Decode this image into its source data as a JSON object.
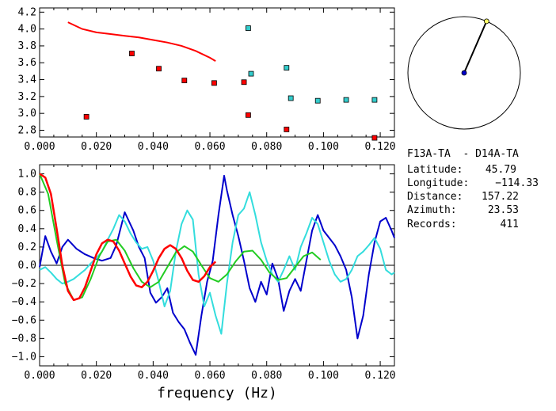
{
  "info": {
    "pair": "F13A-TA  - D14A-TA",
    "rows": [
      {
        "label": "Latitude:",
        "value": "45.79"
      },
      {
        "label": "Longitude:",
        "value": "-114.33"
      },
      {
        "label": "Distance:",
        "value": "157.22"
      },
      {
        "label": "Azimuth:",
        "value": "23.53"
      },
      {
        "label": "Records:",
        "value": "411"
      }
    ]
  },
  "compass": {
    "azimuth_deg": 23.53
  },
  "chart_data": [
    {
      "type": "scatter",
      "title": "",
      "xlabel": "",
      "ylabel": "",
      "xlim": [
        0.0,
        0.125
      ],
      "ylim": [
        2.72,
        4.25
      ],
      "xticks": [
        "0.000",
        "0.020",
        "0.040",
        "0.060",
        "0.080",
        "0.100",
        "0.120"
      ],
      "yticks": [
        "2.8",
        "3.0",
        "3.2",
        "3.4",
        "3.6",
        "3.8",
        "4.0",
        "4.2"
      ],
      "series": [
        {
          "color": "#ff0000",
          "kind": "line",
          "x": [
            0.01,
            0.015,
            0.02,
            0.025,
            0.03,
            0.035,
            0.04,
            0.045,
            0.05,
            0.055,
            0.06,
            0.062
          ],
          "y": [
            4.08,
            4.0,
            3.96,
            3.94,
            3.92,
            3.9,
            3.87,
            3.84,
            3.8,
            3.74,
            3.66,
            3.62
          ]
        },
        {
          "color": "#ff0000",
          "kind": "markers",
          "x": [
            0.0165,
            0.0325,
            0.042,
            0.051,
            0.0615,
            0.072,
            0.0735,
            0.087,
            0.118
          ],
          "y": [
            2.96,
            3.71,
            3.53,
            3.39,
            3.36,
            3.37,
            2.98,
            2.81,
            2.71
          ]
        },
        {
          "color": "#33cccc",
          "kind": "markers",
          "x": [
            0.0735,
            0.0745,
            0.087,
            0.0885,
            0.098,
            0.108,
            0.118
          ],
          "y": [
            4.01,
            3.47,
            3.54,
            3.18,
            3.15,
            3.16,
            3.16
          ]
        }
      ]
    },
    {
      "type": "line",
      "title": "",
      "xlabel": "frequency (Hz)",
      "ylabel": "",
      "xlim": [
        0.0,
        0.125
      ],
      "ylim": [
        -1.1,
        1.1
      ],
      "xticks": [
        "0.000",
        "0.020",
        "0.040",
        "0.060",
        "0.080",
        "0.100",
        "0.120"
      ],
      "yticks": [
        "1.0",
        "0.8",
        "0.6",
        "0.4",
        "0.2",
        "0.0",
        "-0.2",
        "-0.4",
        "-0.6",
        "-0.8",
        "-1.0"
      ],
      "series": [
        {
          "color": "#0000cc",
          "x": [
            0.0,
            0.002,
            0.004,
            0.006,
            0.008,
            0.01,
            0.013,
            0.016,
            0.019,
            0.022,
            0.025,
            0.027,
            0.03,
            0.033,
            0.035,
            0.037,
            0.039,
            0.041,
            0.043,
            0.045,
            0.047,
            0.049,
            0.051,
            0.053,
            0.055,
            0.057,
            0.059,
            0.061,
            0.063,
            0.065,
            0.066,
            0.068,
            0.07,
            0.072,
            0.074,
            0.076,
            0.078,
            0.08,
            0.082,
            0.084,
            0.086,
            0.088,
            0.09,
            0.092,
            0.094,
            0.096,
            0.098,
            0.1,
            0.102,
            0.104,
            0.106,
            0.108,
            0.11,
            0.112,
            0.114,
            0.116,
            0.118,
            0.12,
            0.122,
            0.124,
            0.125
          ],
          "y": [
            -0.02,
            0.32,
            0.15,
            0.02,
            0.2,
            0.28,
            0.18,
            0.12,
            0.08,
            0.05,
            0.08,
            0.22,
            0.58,
            0.38,
            0.2,
            0.08,
            -0.3,
            -0.41,
            -0.35,
            -0.25,
            -0.52,
            -0.62,
            -0.7,
            -0.85,
            -0.98,
            -0.55,
            -0.18,
            0.05,
            0.55,
            0.98,
            0.82,
            0.55,
            0.32,
            0.05,
            -0.25,
            -0.4,
            -0.18,
            -0.32,
            0.02,
            -0.15,
            -0.5,
            -0.28,
            -0.15,
            -0.28,
            0.05,
            0.38,
            0.55,
            0.38,
            0.3,
            0.22,
            0.1,
            -0.05,
            -0.35,
            -0.8,
            -0.55,
            -0.1,
            0.25,
            0.48,
            0.52,
            0.38,
            0.3
          ]
        },
        {
          "color": "#33dddd",
          "x": [
            0.0,
            0.002,
            0.004,
            0.006,
            0.008,
            0.01,
            0.012,
            0.014,
            0.016,
            0.018,
            0.02,
            0.022,
            0.024,
            0.026,
            0.028,
            0.03,
            0.032,
            0.034,
            0.036,
            0.038,
            0.04,
            0.042,
            0.044,
            0.046,
            0.048,
            0.05,
            0.052,
            0.054,
            0.056,
            0.058,
            0.06,
            0.062,
            0.064,
            0.066,
            0.068,
            0.07,
            0.072,
            0.074,
            0.076,
            0.078,
            0.08,
            0.082,
            0.084,
            0.086,
            0.088,
            0.09,
            0.092,
            0.094,
            0.096,
            0.098,
            0.1,
            0.102,
            0.104,
            0.106,
            0.108,
            0.11,
            0.112,
            0.114,
            0.116,
            0.118,
            0.12,
            0.122,
            0.124,
            0.125
          ],
          "y": [
            -0.05,
            -0.02,
            -0.08,
            -0.15,
            -0.2,
            -0.18,
            -0.15,
            -0.1,
            -0.05,
            0.02,
            0.08,
            0.15,
            0.28,
            0.4,
            0.55,
            0.48,
            0.35,
            0.25,
            0.18,
            0.2,
            0.05,
            -0.18,
            -0.45,
            -0.28,
            0.15,
            0.45,
            0.6,
            0.5,
            -0.1,
            -0.45,
            -0.3,
            -0.55,
            -0.75,
            -0.2,
            0.25,
            0.55,
            0.62,
            0.8,
            0.55,
            0.25,
            0.05,
            -0.1,
            -0.18,
            -0.05,
            0.1,
            -0.05,
            0.2,
            0.35,
            0.52,
            0.45,
            0.25,
            0.05,
            -0.1,
            -0.18,
            -0.15,
            -0.05,
            0.1,
            0.15,
            0.22,
            0.3,
            0.18,
            -0.05,
            -0.1,
            -0.08
          ]
        },
        {
          "color": "#22cc22",
          "x": [
            0.0,
            0.003,
            0.006,
            0.009,
            0.012,
            0.015,
            0.018,
            0.021,
            0.024,
            0.027,
            0.03,
            0.033,
            0.036,
            0.039,
            0.042,
            0.045,
            0.048,
            0.051,
            0.054,
            0.057,
            0.06,
            0.063,
            0.066,
            0.069,
            0.072,
            0.075,
            0.078,
            0.081,
            0.084,
            0.087,
            0.09,
            0.093,
            0.096,
            0.099
          ],
          "y": [
            1.0,
            0.78,
            0.28,
            -0.2,
            -0.38,
            -0.35,
            -0.15,
            0.1,
            0.26,
            0.28,
            0.16,
            -0.03,
            -0.18,
            -0.24,
            -0.18,
            -0.02,
            0.14,
            0.21,
            0.15,
            0.0,
            -0.14,
            -0.18,
            -0.1,
            0.04,
            0.15,
            0.16,
            0.06,
            -0.08,
            -0.16,
            -0.14,
            -0.02,
            0.1,
            0.14,
            0.06
          ]
        },
        {
          "color": "#ff0000",
          "x": [
            0.0,
            0.002,
            0.004,
            0.006,
            0.008,
            0.01,
            0.012,
            0.014,
            0.016,
            0.018,
            0.02,
            0.022,
            0.024,
            0.026,
            0.028,
            0.03,
            0.032,
            0.034,
            0.036,
            0.038,
            0.04,
            0.042,
            0.044,
            0.046,
            0.048,
            0.05,
            0.052,
            0.054,
            0.056,
            0.058,
            0.06,
            0.062
          ],
          "y": [
            1.0,
            0.96,
            0.78,
            0.4,
            0.0,
            -0.28,
            -0.38,
            -0.36,
            -0.24,
            -0.06,
            0.12,
            0.24,
            0.28,
            0.26,
            0.16,
            0.02,
            -0.12,
            -0.22,
            -0.24,
            -0.18,
            -0.06,
            0.08,
            0.18,
            0.22,
            0.18,
            0.08,
            -0.06,
            -0.16,
            -0.18,
            -0.12,
            -0.02,
            0.04
          ]
        }
      ]
    }
  ]
}
